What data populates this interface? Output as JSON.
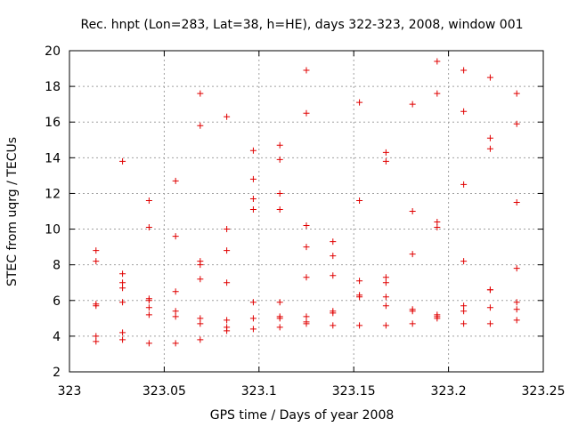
{
  "chart_data": {
    "type": "scatter",
    "title": "Rec. hnpt (Lon=283, Lat=38, h=HE), days 322-323, 2008, window 001",
    "xlabel": "GPS time / Days of year 2008",
    "ylabel": "STEC from uqrg / TECUs",
    "xlim": [
      323,
      323.25
    ],
    "ylim": [
      2,
      20
    ],
    "grid": true,
    "marker": "+",
    "color": "#e00000",
    "xticks": [
      "323",
      "323.05",
      "323.1",
      "323.15",
      "323.2",
      "323.25"
    ],
    "yticks": [
      "2",
      "4",
      "6",
      "8",
      "10",
      "12",
      "14",
      "16",
      "18",
      "20"
    ],
    "series": [
      {
        "name": "STEC",
        "points": [
          [
            323.014,
            8.8
          ],
          [
            323.014,
            8.2
          ],
          [
            323.014,
            5.8
          ],
          [
            323.014,
            5.7
          ],
          [
            323.014,
            4.0
          ],
          [
            323.014,
            3.7
          ],
          [
            323.028,
            13.8
          ],
          [
            323.028,
            7.5
          ],
          [
            323.028,
            7.0
          ],
          [
            323.028,
            6.7
          ],
          [
            323.028,
            5.9
          ],
          [
            323.028,
            4.2
          ],
          [
            323.028,
            3.8
          ],
          [
            323.042,
            11.6
          ],
          [
            323.042,
            10.1
          ],
          [
            323.042,
            6.1
          ],
          [
            323.042,
            6.0
          ],
          [
            323.042,
            5.6
          ],
          [
            323.042,
            5.2
          ],
          [
            323.042,
            3.6
          ],
          [
            323.056,
            12.7
          ],
          [
            323.056,
            9.6
          ],
          [
            323.056,
            6.5
          ],
          [
            323.056,
            5.4
          ],
          [
            323.056,
            5.1
          ],
          [
            323.056,
            3.6
          ],
          [
            323.069,
            17.6
          ],
          [
            323.069,
            15.8
          ],
          [
            323.069,
            8.2
          ],
          [
            323.069,
            8.0
          ],
          [
            323.069,
            7.2
          ],
          [
            323.069,
            5.0
          ],
          [
            323.069,
            4.7
          ],
          [
            323.069,
            3.8
          ],
          [
            323.083,
            16.3
          ],
          [
            323.083,
            10.0
          ],
          [
            323.083,
            8.8
          ],
          [
            323.083,
            7.0
          ],
          [
            323.083,
            4.9
          ],
          [
            323.083,
            4.5
          ],
          [
            323.083,
            4.3
          ],
          [
            323.097,
            14.4
          ],
          [
            323.097,
            12.8
          ],
          [
            323.097,
            11.7
          ],
          [
            323.097,
            11.1
          ],
          [
            323.097,
            5.9
          ],
          [
            323.097,
            5.0
          ],
          [
            323.097,
            4.4
          ],
          [
            323.111,
            14.7
          ],
          [
            323.111,
            13.9
          ],
          [
            323.111,
            12.0
          ],
          [
            323.111,
            11.1
          ],
          [
            323.111,
            5.9
          ],
          [
            323.111,
            5.1
          ],
          [
            323.111,
            5.0
          ],
          [
            323.111,
            4.5
          ],
          [
            323.125,
            18.9
          ],
          [
            323.125,
            16.5
          ],
          [
            323.125,
            10.2
          ],
          [
            323.125,
            9.0
          ],
          [
            323.125,
            7.3
          ],
          [
            323.125,
            5.1
          ],
          [
            323.125,
            4.8
          ],
          [
            323.125,
            4.7
          ],
          [
            323.139,
            9.3
          ],
          [
            323.139,
            8.5
          ],
          [
            323.139,
            7.4
          ],
          [
            323.139,
            5.4
          ],
          [
            323.139,
            5.3
          ],
          [
            323.139,
            4.6
          ],
          [
            323.153,
            17.1
          ],
          [
            323.153,
            11.6
          ],
          [
            323.153,
            7.1
          ],
          [
            323.153,
            6.3
          ],
          [
            323.153,
            6.2
          ],
          [
            323.153,
            4.6
          ],
          [
            323.167,
            14.3
          ],
          [
            323.167,
            13.8
          ],
          [
            323.167,
            7.3
          ],
          [
            323.167,
            7.0
          ],
          [
            323.167,
            6.2
          ],
          [
            323.167,
            5.7
          ],
          [
            323.167,
            4.6
          ],
          [
            323.181,
            17.0
          ],
          [
            323.181,
            11.0
          ],
          [
            323.181,
            8.6
          ],
          [
            323.181,
            5.5
          ],
          [
            323.181,
            5.4
          ],
          [
            323.181,
            4.7
          ],
          [
            323.194,
            19.4
          ],
          [
            323.194,
            17.6
          ],
          [
            323.194,
            10.4
          ],
          [
            323.194,
            10.1
          ],
          [
            323.194,
            5.2
          ],
          [
            323.194,
            5.1
          ],
          [
            323.194,
            5.0
          ],
          [
            323.208,
            18.9
          ],
          [
            323.208,
            16.6
          ],
          [
            323.208,
            12.5
          ],
          [
            323.208,
            8.2
          ],
          [
            323.208,
            5.7
          ],
          [
            323.208,
            5.4
          ],
          [
            323.208,
            4.7
          ],
          [
            323.222,
            18.5
          ],
          [
            323.222,
            15.1
          ],
          [
            323.222,
            14.5
          ],
          [
            323.222,
            6.6
          ],
          [
            323.222,
            6.6
          ],
          [
            323.222,
            5.6
          ],
          [
            323.222,
            4.7
          ],
          [
            323.236,
            17.6
          ],
          [
            323.236,
            15.9
          ],
          [
            323.236,
            11.5
          ],
          [
            323.236,
            7.8
          ],
          [
            323.236,
            5.9
          ],
          [
            323.236,
            5.5
          ],
          [
            323.236,
            4.9
          ]
        ]
      }
    ]
  }
}
